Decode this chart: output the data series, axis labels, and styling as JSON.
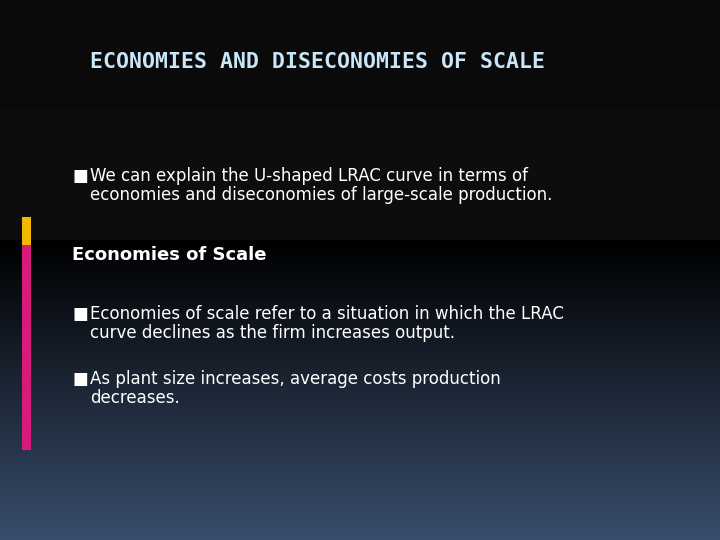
{
  "title": "ECONOMIES AND DISECONOMIES OF SCALE",
  "title_color": "#c8e6f8",
  "title_fontsize": 15.5,
  "background_color": "#0d0d0d",
  "text_color": "#ffffff",
  "bullet_char": "■",
  "bullet1_line1": "We can explain the U-shaped LRAC curve in terms of",
  "bullet1_line2": "economies and diseconomies of large-scale production.",
  "subheading": "Economies of Scale",
  "subheading_fontsize": 13,
  "bullet2_line1": "Economies of scale refer to a situation in which the LRAC",
  "bullet2_line2": "curve declines as the firm increases output.",
  "bullet3_line1": "As plant size increases, average costs production",
  "bullet3_line2": "decreases.",
  "side_bar_yellow": "#f5b800",
  "side_bar_pink": "#d81b7a",
  "body_text_fontsize": 12
}
